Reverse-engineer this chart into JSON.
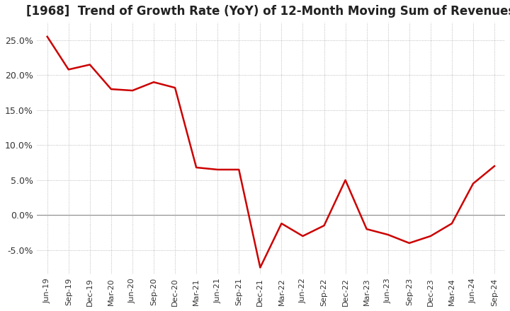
{
  "title": "[1968]  Trend of Growth Rate (YoY) of 12-Month Moving Sum of Revenues",
  "title_fontsize": 12,
  "line_color": "#cc0000",
  "background_color": "#ffffff",
  "grid_color": "#aaaaaa",
  "zero_line_color": "#888888",
  "ylim": [
    -0.085,
    0.275
  ],
  "yticks": [
    -0.05,
    0.0,
    0.05,
    0.1,
    0.15,
    0.2,
    0.25
  ],
  "x_labels": [
    "Jun-19",
    "Sep-19",
    "Dec-19",
    "Mar-20",
    "Jun-20",
    "Sep-20",
    "Dec-20",
    "Mar-21",
    "Jun-21",
    "Sep-21",
    "Dec-21",
    "Mar-22",
    "Jun-22",
    "Sep-22",
    "Dec-22",
    "Mar-23",
    "Jun-23",
    "Sep-23",
    "Dec-23",
    "Mar-24",
    "Jun-24",
    "Sep-24"
  ],
  "y_values": [
    0.255,
    0.208,
    0.215,
    0.18,
    0.178,
    0.19,
    0.182,
    0.068,
    0.065,
    0.065,
    -0.075,
    -0.012,
    -0.03,
    -0.015,
    0.05,
    -0.02,
    -0.028,
    -0.04,
    -0.03,
    -0.012,
    0.045,
    0.07
  ]
}
